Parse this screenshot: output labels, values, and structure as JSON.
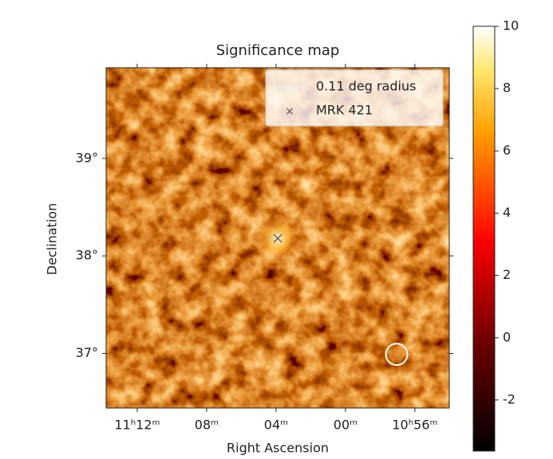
{
  "chart_data": {
    "type": "skymap",
    "title": "Significance map",
    "xlabel": "Right Ascension",
    "ylabel": "Declination",
    "xlim": [
      673.79,
      654.02
    ],
    "ylim": [
      36.44,
      39.93
    ],
    "xticks": [
      {
        "value": 672,
        "label": "11ʰ12ᵐ"
      },
      {
        "value": 668,
        "label": "08ᵐ"
      },
      {
        "value": 664,
        "label": "04ᵐ"
      },
      {
        "value": 660,
        "label": "00ᵐ"
      },
      {
        "value": 656,
        "label": "10ʰ56ᵐ"
      }
    ],
    "yticks": [
      {
        "value": 37,
        "label": "37°"
      },
      {
        "value": 38,
        "label": "38°"
      },
      {
        "value": 39,
        "label": "39°"
      }
    ],
    "source": {
      "name": "MRK 421",
      "ra": 663.9,
      "dec": 38.18
    },
    "circle": {
      "name": "0.11 deg radius",
      "ra": 657.05,
      "dec": 36.99,
      "radius_deg": 0.11
    },
    "colorbar": {
      "lim": [
        -3.64,
        10
      ],
      "ticks": [
        -2,
        0,
        2,
        4,
        6,
        8,
        10
      ]
    }
  }
}
